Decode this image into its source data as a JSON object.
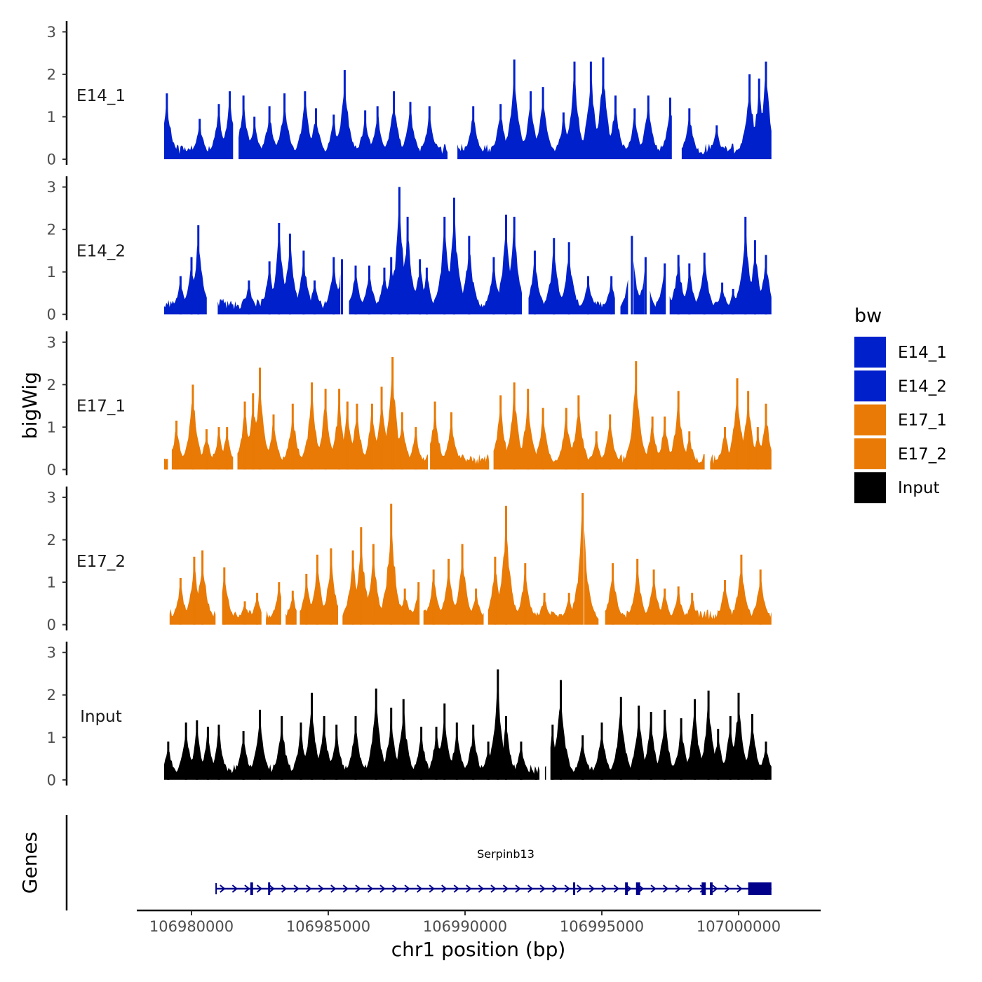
{
  "chart_data": {
    "type": "area",
    "ylabel": "bigWig",
    "xlabel": "chr1 position (bp)",
    "genes_label": "Genes",
    "ylim": [
      0,
      3
    ],
    "y_ticks": [
      "0",
      "1",
      "2",
      "3"
    ],
    "xlim": [
      106978000,
      107003000
    ],
    "x_ticks": [
      106980000,
      106985000,
      106990000,
      106995000,
      107000000
    ],
    "x_tick_labels": [
      "106980000",
      "106985000",
      "106990000",
      "106995000",
      "107000000"
    ],
    "legend": {
      "title": "bw",
      "position": "right",
      "entries": [
        {
          "label": "E14_1",
          "color": "#0020CC"
        },
        {
          "label": "E14_2",
          "color": "#0020CC"
        },
        {
          "label": "E17_1",
          "color": "#E87A05"
        },
        {
          "label": "E17_2",
          "color": "#E87A05"
        },
        {
          "label": "Input",
          "color": "#000000"
        }
      ]
    },
    "series": [
      {
        "name": "E14_1",
        "color": "#0020CC",
        "start": 106979000,
        "end": 107001200,
        "gaps": [
          [
            106981550,
            106981700
          ],
          [
            106989400,
            106989700
          ],
          [
            106997600,
            106997900
          ]
        ],
        "peaks": [
          [
            106979100,
            1.55
          ],
          [
            106980300,
            0.95
          ],
          [
            106981000,
            1.3
          ],
          [
            106981400,
            1.6
          ],
          [
            106981900,
            1.5
          ],
          [
            106982300,
            1.0
          ],
          [
            106982850,
            1.25
          ],
          [
            106983400,
            1.55
          ],
          [
            106984150,
            1.6
          ],
          [
            106984550,
            1.2
          ],
          [
            106985200,
            1.05
          ],
          [
            106985600,
            2.1
          ],
          [
            106986350,
            1.15
          ],
          [
            106986800,
            1.25
          ],
          [
            106987400,
            1.6
          ],
          [
            106988000,
            1.35
          ],
          [
            106988700,
            1.25
          ],
          [
            106990300,
            1.25
          ],
          [
            106991300,
            1.3
          ],
          [
            106991800,
            2.35
          ],
          [
            106992400,
            1.6
          ],
          [
            106992850,
            1.7
          ],
          [
            106993600,
            1.1
          ],
          [
            106994000,
            2.3
          ],
          [
            106994600,
            2.3
          ],
          [
            106995050,
            2.4
          ],
          [
            106995500,
            1.5
          ],
          [
            106996200,
            1.2
          ],
          [
            106996700,
            1.5
          ],
          [
            106997500,
            1.45
          ],
          [
            106998200,
            1.2
          ],
          [
            106999200,
            0.8
          ],
          [
            107000400,
            2.0
          ],
          [
            107000750,
            1.9
          ],
          [
            107001000,
            2.3
          ]
        ]
      },
      {
        "name": "E14_2",
        "color": "#0020CC",
        "start": 106979000,
        "end": 107001200,
        "gaps": [
          [
            106980600,
            106980950
          ],
          [
            106985450,
            106985750
          ],
          [
            106992100,
            106992300
          ],
          [
            106995500,
            106995650
          ],
          [
            106996000,
            106996150
          ],
          [
            106996600,
            106996750
          ],
          [
            106997300,
            106997450
          ]
        ],
        "peaks": [
          [
            106979600,
            0.9
          ],
          [
            106980000,
            1.35
          ],
          [
            106980250,
            2.1
          ],
          [
            106982100,
            0.8
          ],
          [
            106982850,
            1.25
          ],
          [
            106983200,
            2.15
          ],
          [
            106983600,
            1.9
          ],
          [
            106984100,
            1.5
          ],
          [
            106984500,
            0.8
          ],
          [
            106985200,
            1.35
          ],
          [
            106985500,
            1.3
          ],
          [
            106986000,
            1.15
          ],
          [
            106986500,
            1.15
          ],
          [
            106987050,
            1.1
          ],
          [
            106987300,
            1.35
          ],
          [
            106987600,
            3.0
          ],
          [
            106987900,
            2.3
          ],
          [
            106988350,
            1.3
          ],
          [
            106988600,
            1.1
          ],
          [
            106989250,
            2.3
          ],
          [
            106989600,
            2.75
          ],
          [
            106990150,
            1.85
          ],
          [
            106991050,
            1.35
          ],
          [
            106991500,
            2.35
          ],
          [
            106991800,
            2.3
          ],
          [
            106992550,
            1.5
          ],
          [
            106993250,
            1.8
          ],
          [
            106993800,
            1.7
          ],
          [
            106994500,
            0.9
          ],
          [
            106995350,
            0.9
          ],
          [
            106996100,
            1.85
          ],
          [
            106996600,
            1.35
          ],
          [
            106997300,
            1.2
          ],
          [
            106997800,
            1.4
          ],
          [
            106998200,
            1.2
          ],
          [
            106998750,
            1.45
          ],
          [
            106999400,
            0.75
          ],
          [
            106999800,
            0.6
          ],
          [
            107000250,
            2.3
          ],
          [
            107000600,
            1.75
          ],
          [
            107001000,
            1.4
          ]
        ]
      },
      {
        "name": "E17_1",
        "color": "#E87A05",
        "start": 106979000,
        "end": 107001200,
        "gaps": [
          [
            106979150,
            106979250
          ],
          [
            106981550,
            106981650
          ],
          [
            106988650,
            106988700
          ],
          [
            106990900,
            106991000
          ],
          [
            106998800,
            106998950
          ]
        ],
        "peaks": [
          [
            106979100,
            0.25
          ],
          [
            106979450,
            1.15
          ],
          [
            106980050,
            2.0
          ],
          [
            106980550,
            0.95
          ],
          [
            106981000,
            1.0
          ],
          [
            106981300,
            1.0
          ],
          [
            106981950,
            1.6
          ],
          [
            106982250,
            1.8
          ],
          [
            106982500,
            2.4
          ],
          [
            106983000,
            1.3
          ],
          [
            106983700,
            1.55
          ],
          [
            106984400,
            2.05
          ],
          [
            106984900,
            1.9
          ],
          [
            106985400,
            1.9
          ],
          [
            106985700,
            1.6
          ],
          [
            106986050,
            1.55
          ],
          [
            106986600,
            1.55
          ],
          [
            106986950,
            1.95
          ],
          [
            106987350,
            2.65
          ],
          [
            106987700,
            1.35
          ],
          [
            106988200,
            1.0
          ],
          [
            106988900,
            1.6
          ],
          [
            106989500,
            1.35
          ],
          [
            106990300,
            0.2
          ],
          [
            106990800,
            0.25
          ],
          [
            106991300,
            1.75
          ],
          [
            106991800,
            2.05
          ],
          [
            106992300,
            1.9
          ],
          [
            106992850,
            1.45
          ],
          [
            106993700,
            1.45
          ],
          [
            106994150,
            1.75
          ],
          [
            106994800,
            0.9
          ],
          [
            106995300,
            1.3
          ],
          [
            106996250,
            2.55
          ],
          [
            106996850,
            1.25
          ],
          [
            106997300,
            1.25
          ],
          [
            106997800,
            1.85
          ],
          [
            106998200,
            0.9
          ],
          [
            106999500,
            1.0
          ],
          [
            106999950,
            2.15
          ],
          [
            107000350,
            1.85
          ],
          [
            107000700,
            1.0
          ],
          [
            107001000,
            1.55
          ]
        ]
      },
      {
        "name": "E17_2",
        "color": "#E87A05",
        "start": 106979200,
        "end": 107001200,
        "gaps": [
          [
            106980900,
            106981100
          ],
          [
            106982600,
            106982700
          ],
          [
            106983300,
            106983400
          ],
          [
            106983850,
            106983950
          ],
          [
            106985400,
            106985500
          ],
          [
            106988350,
            106988450
          ],
          [
            106990700,
            106990800
          ],
          [
            106994300,
            106994350
          ],
          [
            106994900,
            106995100
          ]
        ],
        "peaks": [
          [
            106979600,
            1.1
          ],
          [
            106980100,
            1.6
          ],
          [
            106980400,
            1.75
          ],
          [
            106981200,
            1.35
          ],
          [
            106981950,
            0.55
          ],
          [
            106982400,
            0.75
          ],
          [
            106983200,
            1.0
          ],
          [
            106983700,
            0.8
          ],
          [
            106984200,
            1.2
          ],
          [
            106984600,
            1.65
          ],
          [
            106985100,
            1.8
          ],
          [
            106985900,
            1.75
          ],
          [
            106986200,
            2.3
          ],
          [
            106986650,
            1.9
          ],
          [
            106987300,
            2.85
          ],
          [
            106987800,
            0.85
          ],
          [
            106988300,
            1.0
          ],
          [
            106988850,
            1.3
          ],
          [
            106989400,
            1.55
          ],
          [
            106989900,
            1.9
          ],
          [
            106990400,
            0.85
          ],
          [
            106991100,
            1.6
          ],
          [
            106991500,
            2.8
          ],
          [
            106992200,
            1.45
          ],
          [
            106992900,
            0.75
          ],
          [
            106993800,
            0.75
          ],
          [
            106994300,
            3.1
          ],
          [
            106995400,
            1.45
          ],
          [
            106996300,
            1.55
          ],
          [
            106996900,
            1.3
          ],
          [
            106997300,
            0.85
          ],
          [
            106997800,
            0.9
          ],
          [
            106998300,
            0.75
          ],
          [
            106999500,
            1.05
          ],
          [
            107000100,
            1.65
          ],
          [
            107000800,
            1.3
          ]
        ]
      },
      {
        "name": "Input",
        "color": "#000000",
        "start": 106979000,
        "end": 107001200,
        "gaps": [
          [
            106992750,
            106992900
          ],
          [
            106993000,
            106993100
          ]
        ],
        "peaks": [
          [
            106979150,
            0.9
          ],
          [
            106979800,
            1.35
          ],
          [
            106980200,
            1.4
          ],
          [
            106980600,
            1.25
          ],
          [
            106981000,
            1.3
          ],
          [
            106981900,
            1.15
          ],
          [
            106982500,
            1.65
          ],
          [
            106983300,
            1.5
          ],
          [
            106984000,
            1.35
          ],
          [
            106984400,
            2.05
          ],
          [
            106984850,
            1.5
          ],
          [
            106985300,
            1.3
          ],
          [
            106986000,
            1.5
          ],
          [
            106986750,
            2.15
          ],
          [
            106987300,
            1.7
          ],
          [
            106987750,
            1.9
          ],
          [
            106988400,
            1.25
          ],
          [
            106988950,
            1.25
          ],
          [
            106989250,
            1.8
          ],
          [
            106989700,
            1.35
          ],
          [
            106990300,
            1.3
          ],
          [
            106990850,
            0.9
          ],
          [
            106991200,
            2.6
          ],
          [
            106991500,
            1.5
          ],
          [
            106992050,
            0.9
          ],
          [
            106992600,
            0.2
          ],
          [
            106993200,
            1.3
          ],
          [
            106993500,
            2.35
          ],
          [
            106994300,
            1.05
          ],
          [
            106995000,
            1.35
          ],
          [
            106995700,
            1.95
          ],
          [
            106996350,
            1.75
          ],
          [
            106996800,
            1.6
          ],
          [
            106997300,
            1.65
          ],
          [
            106997900,
            1.45
          ],
          [
            106998400,
            1.9
          ],
          [
            106998900,
            2.1
          ],
          [
            106999250,
            1.2
          ],
          [
            106999700,
            1.5
          ],
          [
            107000000,
            2.05
          ],
          [
            107000500,
            1.55
          ],
          [
            107001000,
            0.9
          ]
        ]
      }
    ],
    "gene": {
      "name": "Serpinb13",
      "color": "#00008B",
      "start": 106980900,
      "end": 107001200,
      "strand": "+",
      "exons": [
        [
          106982150,
          106982250
        ],
        [
          106982800,
          106982850
        ],
        [
          106993950,
          106994000
        ],
        [
          106995850,
          106995950
        ],
        [
          106996250,
          106996400
        ],
        [
          106998650,
          106998800
        ],
        [
          106998950,
          106999050
        ],
        [
          107000350,
          107001200
        ]
      ]
    }
  }
}
